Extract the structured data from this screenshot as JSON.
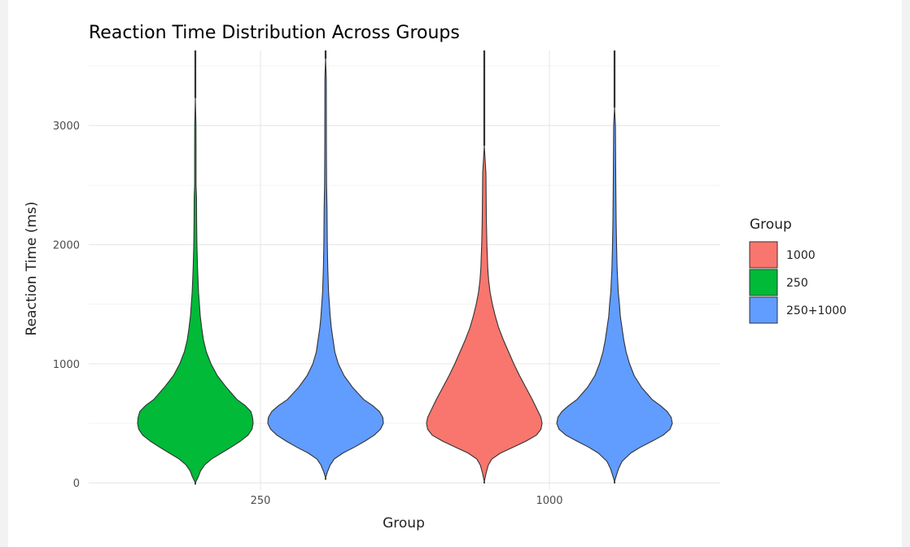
{
  "chart_data": {
    "type": "violin",
    "title": "Reaction Time Distribution Across Groups",
    "xlabel": "Group",
    "ylabel": "Reaction Time (ms)",
    "categories": [
      "250",
      "1000"
    ],
    "ylim": [
      -60,
      3630
    ],
    "yticks": [
      0,
      1000,
      2000,
      3000
    ],
    "grid": true,
    "legend": {
      "title": "Group",
      "position": "right",
      "entries": [
        {
          "label": "1000",
          "color": "#F8766D"
        },
        {
          "label": "250",
          "color": "#00BA38"
        },
        {
          "label": "250+1000",
          "color": "#619CFF"
        }
      ]
    },
    "series": [
      {
        "category": "250",
        "fill_group": "250",
        "color": "#00BA38",
        "min": 0,
        "max": 3230,
        "profile": [
          [
            0,
            0.0
          ],
          [
            50,
            0.05
          ],
          [
            100,
            0.09
          ],
          [
            150,
            0.16
          ],
          [
            200,
            0.28
          ],
          [
            250,
            0.45
          ],
          [
            300,
            0.62
          ],
          [
            350,
            0.78
          ],
          [
            400,
            0.91
          ],
          [
            450,
            0.98
          ],
          [
            500,
            1.0
          ],
          [
            550,
            0.99
          ],
          [
            600,
            0.96
          ],
          [
            650,
            0.86
          ],
          [
            700,
            0.72
          ],
          [
            800,
            0.54
          ],
          [
            900,
            0.38
          ],
          [
            1000,
            0.27
          ],
          [
            1100,
            0.19
          ],
          [
            1200,
            0.14
          ],
          [
            1300,
            0.11
          ],
          [
            1400,
            0.085
          ],
          [
            1600,
            0.055
          ],
          [
            1800,
            0.038
          ],
          [
            2000,
            0.027
          ],
          [
            2200,
            0.022
          ],
          [
            2400,
            0.02
          ],
          [
            2500,
            0.012
          ],
          [
            2800,
            0.012
          ],
          [
            3000,
            0.011
          ],
          [
            3230,
            0.0
          ]
        ]
      },
      {
        "category": "250",
        "fill_group": "250+1000",
        "color": "#619CFF",
        "min": 40,
        "max": 3560,
        "profile": [
          [
            40,
            0.0
          ],
          [
            90,
            0.03
          ],
          [
            150,
            0.08
          ],
          [
            200,
            0.15
          ],
          [
            250,
            0.3
          ],
          [
            300,
            0.5
          ],
          [
            350,
            0.68
          ],
          [
            400,
            0.84
          ],
          [
            450,
            0.95
          ],
          [
            500,
            1.0
          ],
          [
            550,
            0.99
          ],
          [
            600,
            0.93
          ],
          [
            650,
            0.81
          ],
          [
            700,
            0.66
          ],
          [
            800,
            0.47
          ],
          [
            900,
            0.32
          ],
          [
            1000,
            0.22
          ],
          [
            1100,
            0.16
          ],
          [
            1200,
            0.13
          ],
          [
            1300,
            0.1
          ],
          [
            1400,
            0.08
          ],
          [
            1600,
            0.052
          ],
          [
            1800,
            0.038
          ],
          [
            2000,
            0.03
          ],
          [
            2300,
            0.025
          ],
          [
            2500,
            0.017
          ],
          [
            2800,
            0.014
          ],
          [
            3100,
            0.013
          ],
          [
            3400,
            0.012
          ],
          [
            3560,
            0.0
          ]
        ]
      },
      {
        "category": "1000",
        "fill_group": "1000",
        "color": "#F8766D",
        "min": 10,
        "max": 2830,
        "profile": [
          [
            10,
            0.0
          ],
          [
            80,
            0.03
          ],
          [
            150,
            0.07
          ],
          [
            200,
            0.13
          ],
          [
            250,
            0.28
          ],
          [
            300,
            0.5
          ],
          [
            350,
            0.72
          ],
          [
            400,
            0.9
          ],
          [
            450,
            0.98
          ],
          [
            500,
            1.0
          ],
          [
            550,
            0.98
          ],
          [
            600,
            0.93
          ],
          [
            700,
            0.83
          ],
          [
            800,
            0.72
          ],
          [
            900,
            0.61
          ],
          [
            1000,
            0.51
          ],
          [
            1100,
            0.42
          ],
          [
            1200,
            0.33
          ],
          [
            1300,
            0.25
          ],
          [
            1400,
            0.19
          ],
          [
            1500,
            0.14
          ],
          [
            1600,
            0.1
          ],
          [
            1700,
            0.075
          ],
          [
            1800,
            0.06
          ],
          [
            2000,
            0.045
          ],
          [
            2200,
            0.036
          ],
          [
            2400,
            0.032
          ],
          [
            2600,
            0.028
          ],
          [
            2830,
            0.0
          ]
        ]
      },
      {
        "category": "1000",
        "fill_group": "250+1000",
        "color": "#619CFF",
        "min": 10,
        "max": 3150,
        "profile": [
          [
            10,
            0.0
          ],
          [
            60,
            0.03
          ],
          [
            120,
            0.07
          ],
          [
            180,
            0.13
          ],
          [
            250,
            0.28
          ],
          [
            300,
            0.45
          ],
          [
            350,
            0.65
          ],
          [
            400,
            0.84
          ],
          [
            450,
            0.96
          ],
          [
            500,
            1.0
          ],
          [
            550,
            0.98
          ],
          [
            600,
            0.91
          ],
          [
            650,
            0.79
          ],
          [
            700,
            0.65
          ],
          [
            800,
            0.47
          ],
          [
            900,
            0.34
          ],
          [
            1000,
            0.26
          ],
          [
            1100,
            0.2
          ],
          [
            1200,
            0.16
          ],
          [
            1300,
            0.13
          ],
          [
            1400,
            0.1
          ],
          [
            1500,
            0.085
          ],
          [
            1600,
            0.065
          ],
          [
            1800,
            0.045
          ],
          [
            2000,
            0.035
          ],
          [
            2200,
            0.028
          ],
          [
            2500,
            0.022
          ],
          [
            2800,
            0.018
          ],
          [
            3000,
            0.015
          ],
          [
            3150,
            0.0
          ]
        ]
      }
    ]
  }
}
